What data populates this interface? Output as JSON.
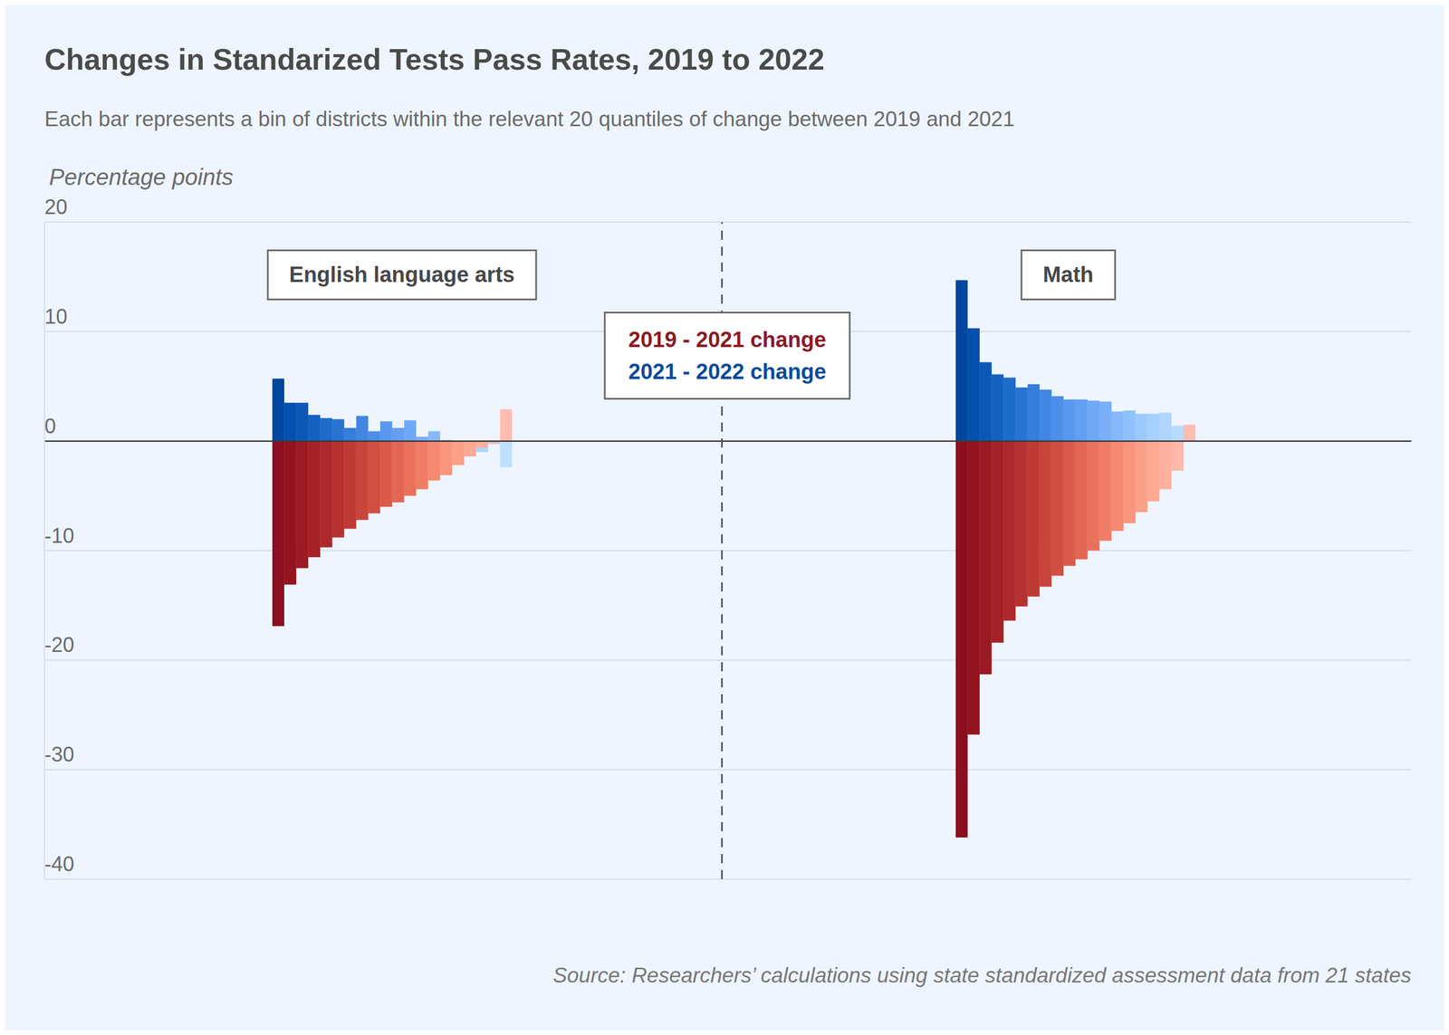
{
  "chart_data": {
    "type": "bar",
    "title": "Changes in Standarized Tests Pass Rates, 2019 to 2022",
    "subtitle": "Each bar represents a bin of districts within the relevant 20 quantiles of change between 2019 and 2021",
    "y_label": "Percentage points",
    "source": "Source: Researchers’ calculations using state standardized assessment data from 21 states",
    "ylim": [
      -40,
      20
    ],
    "yticks": [
      -40,
      -30,
      -20,
      -10,
      0,
      10,
      20
    ],
    "grid": true,
    "tick_labels": "y",
    "legend": "top",
    "panels": [
      {
        "title": "English language arts",
        "series": [
          {
            "name": "2019 - 2021 change",
            "color": "#8b1a24",
            "colors": [
              "#8b0f1e",
              "#93141f",
              "#9c1a22",
              "#a52126",
              "#ae292b",
              "#b73130",
              "#c03a35",
              "#c9443b",
              "#d24e42",
              "#db5a4a",
              "#e36653",
              "#ea725c",
              "#f07e66",
              "#f58a71",
              "#f9957c",
              "#fca087",
              "#fea993",
              "#ffb19e",
              "#ffb8a9",
              "#ffbcb1"
            ],
            "values": [
              -16.9,
              -13.1,
              -11.6,
              -10.6,
              -9.7,
              -8.8,
              -8.0,
              -7.2,
              -6.6,
              -6.0,
              -5.6,
              -5.0,
              -4.4,
              -3.6,
              -3.1,
              -2.2,
              -1.4,
              -0.6,
              -0.2,
              2.9
            ]
          },
          {
            "name": "2021 - 2022 change",
            "color": "#0b4a9c",
            "colors": [
              "#0047a0",
              "#0450ad",
              "#0a59b8",
              "#1362c2",
              "#1d6bcb",
              "#2874d3",
              "#347ddb",
              "#4086e2",
              "#4c8fe8",
              "#5898ee",
              "#63a0f2",
              "#6fa8f6",
              "#7ab0f9",
              "#86b9fb",
              "#91c1fd",
              "#9cc9fe",
              "#a6d0ff",
              "#afd6ff",
              "#b7dcff",
              "#bfe0ff"
            ],
            "values": [
              5.7,
              3.5,
              3.5,
              2.4,
              2.1,
              2.0,
              1.2,
              2.3,
              0.9,
              1.8,
              1.2,
              1.9,
              0.4,
              0.9,
              0.1,
              -0.2,
              -0.6,
              -1.0,
              -0.3,
              -2.4
            ]
          }
        ]
      },
      {
        "title": "Math",
        "series": [
          {
            "name": "2019 - 2021 change",
            "color": "#8b1a24",
            "colors": [
              "#8b0f1e",
              "#93141f",
              "#9c1a22",
              "#a52126",
              "#ae292b",
              "#b73130",
              "#c03a35",
              "#c9443b",
              "#d24e42",
              "#db5a4a",
              "#e36653",
              "#ea725c",
              "#f07e66",
              "#f58a71",
              "#f9957c",
              "#fca087",
              "#fea993",
              "#ffb19e",
              "#ffb8a9",
              "#ffbcb1"
            ],
            "values": [
              -36.2,
              -26.8,
              -21.3,
              -18.4,
              -16.4,
              -15.1,
              -14.2,
              -13.3,
              -12.3,
              -11.4,
              -10.8,
              -10.0,
              -9.1,
              -8.2,
              -7.5,
              -6.5,
              -5.5,
              -4.4,
              -2.7,
              1.5
            ]
          },
          {
            "name": "2021 - 2022 change",
            "color": "#0b4a9c",
            "colors": [
              "#0047a0",
              "#0450ad",
              "#0a59b8",
              "#1362c2",
              "#1d6bcb",
              "#2874d3",
              "#347ddb",
              "#4086e2",
              "#4c8fe8",
              "#5898ee",
              "#63a0f2",
              "#6fa8f6",
              "#7ab0f9",
              "#86b9fb",
              "#91c1fd",
              "#9cc9fe",
              "#a6d0ff",
              "#afd6ff",
              "#b7dcff",
              "#bfe0ff"
            ],
            "values": [
              14.7,
              10.3,
              7.2,
              6.1,
              5.8,
              4.9,
              5.2,
              4.7,
              4.1,
              3.8,
              3.8,
              3.7,
              3.6,
              2.7,
              2.8,
              2.5,
              2.5,
              2.6,
              1.4,
              0.5
            ]
          }
        ]
      }
    ]
  }
}
